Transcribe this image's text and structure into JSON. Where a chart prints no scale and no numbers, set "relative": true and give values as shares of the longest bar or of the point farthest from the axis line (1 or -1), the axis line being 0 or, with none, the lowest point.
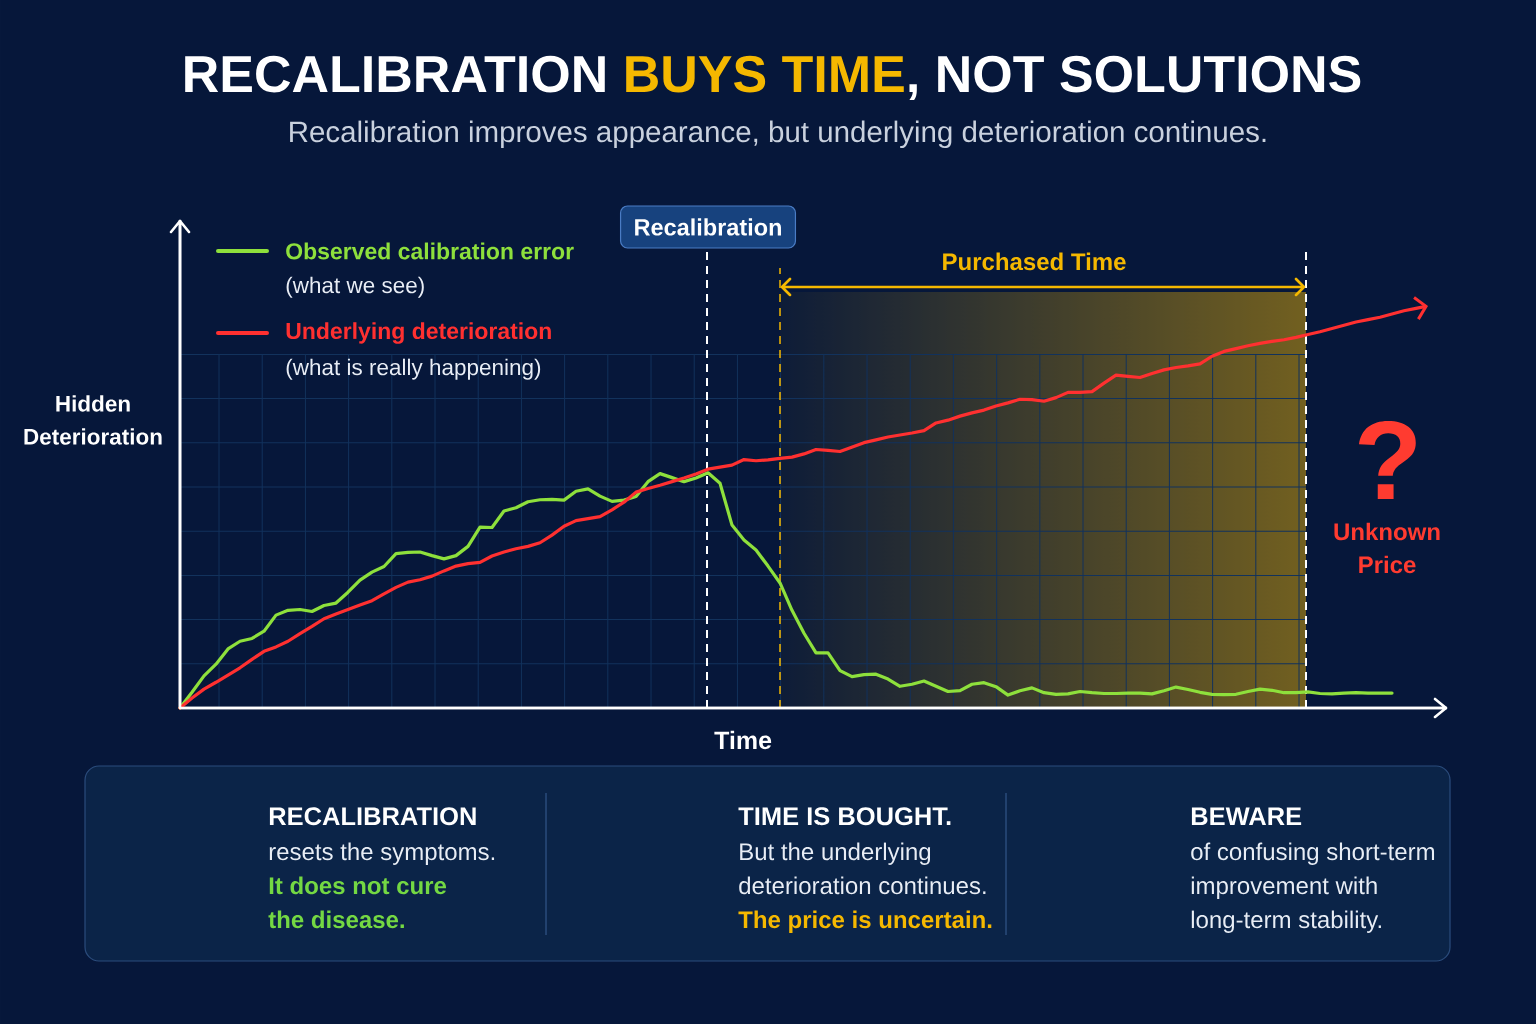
{
  "chart_data": {
    "type": "line",
    "title": "RECALIBRATION **BUYS TIME**, NOT SOLUTIONS",
    "subtitle": "Recalibration improves appearance, but underlying deterioration continues.",
    "xlabel": "Time",
    "ylabel": "Hidden Deterioration",
    "relative": true,
    "categories": [
      null,
      null,
      null,
      null,
      null,
      null,
      null,
      null,
      null,
      null,
      null,
      null,
      null,
      null,
      null,
      null,
      null,
      null,
      null,
      null,
      null,
      null,
      null,
      null,
      null,
      null,
      null,
      null,
      null,
      null,
      null,
      null,
      null,
      null,
      null,
      null,
      null,
      null,
      null,
      null,
      null,
      null,
      null,
      null,
      null,
      null,
      null,
      null,
      null,
      null,
      null,
      null,
      null,
      null,
      null,
      null,
      null,
      null,
      null,
      null,
      null,
      null,
      null,
      null,
      null,
      null,
      null,
      null,
      null,
      null,
      null,
      null,
      null,
      null,
      null,
      null,
      null,
      null,
      null,
      null,
      null,
      null,
      null,
      null,
      null,
      null,
      null,
      null,
      null,
      null,
      null,
      null,
      null,
      null,
      null,
      null,
      null,
      null,
      null,
      null,
      null,
      null,
      null,
      null,
      null
    ],
    "series": [
      {
        "name": "Observed calibration error",
        "color": "#8ee03c",
        "values": [
          0,
          0.039,
          0.08,
          0.109,
          0.147,
          0.166,
          0.173,
          0.191,
          0.231,
          0.243,
          0.245,
          0.24,
          0.255,
          0.261,
          0.288,
          0.318,
          0.338,
          0.352,
          0.384,
          0.387,
          0.388,
          0.379,
          0.371,
          0.379,
          0.402,
          0.45,
          0.449,
          0.49,
          0.498,
          0.513,
          0.518,
          0.519,
          0.517,
          0.539,
          0.545,
          0.527,
          0.514,
          0.517,
          0.526,
          0.563,
          0.583,
          0.573,
          0.563,
          0.572,
          0.585,
          0.559,
          0.455,
          0.418,
          0.393,
          0.353,
          0.311,
          0.243,
          0.186,
          0.137,
          0.137,
          0.093,
          0.078,
          0.083,
          0.084,
          0.072,
          0.054,
          0.059,
          0.067,
          0.054,
          0.041,
          0.043,
          0.059,
          0.063,
          0.053,
          0.032,
          0.043,
          0.05,
          0.038,
          0.034,
          0.035,
          0.041,
          0.038,
          0.036,
          0.036,
          0.037,
          0.037,
          0.035,
          0.043,
          0.052,
          0.046,
          0.039,
          0.034,
          0.033,
          0.034,
          0.041,
          0.047,
          0.044,
          0.038,
          0.038,
          0.04,
          0.036,
          0.035,
          0.037,
          0.038,
          0.037,
          0.037,
          0.037,
          null,
          null,
          null
        ]
      },
      {
        "name": "Underlying deterioration",
        "color": "#ff3030",
        "values": [
          0,
          0.025,
          0.047,
          0.064,
          0.082,
          0.1,
          0.121,
          0.141,
          0.152,
          0.166,
          0.185,
          0.203,
          0.222,
          0.234,
          0.245,
          0.256,
          0.267,
          0.284,
          0.3,
          0.313,
          0.319,
          0.328,
          0.341,
          0.353,
          0.359,
          0.362,
          0.378,
          0.388,
          0.396,
          0.402,
          0.411,
          0.43,
          0.452,
          0.466,
          0.471,
          0.476,
          0.493,
          0.512,
          0.537,
          0.546,
          0.554,
          0.563,
          0.572,
          0.582,
          0.594,
          0.599,
          0.604,
          0.618,
          0.615,
          0.617,
          0.621,
          0.624,
          0.632,
          0.643,
          0.641,
          0.638,
          0.649,
          0.66,
          0.667,
          0.674,
          0.679,
          0.684,
          0.69,
          0.709,
          0.716,
          0.726,
          0.734,
          0.741,
          0.751,
          0.759,
          0.768,
          0.767,
          0.763,
          0.772,
          0.785,
          0.785,
          0.787,
          0.808,
          0.828,
          0.825,
          0.822,
          0.832,
          0.841,
          0.847,
          0.851,
          0.856,
          0.875,
          0.887,
          0.894,
          0.901,
          0.907,
          0.912,
          0.916,
          0.922,
          0.929,
          0.936,
          0.944,
          0.952,
          0.96,
          0.966,
          0.972,
          0.98,
          0.988,
          0.994,
          1.0
        ]
      }
    ],
    "legend": "top left",
    "grid": true,
    "annotations": [
      "(what we see)",
      "(what is really happening)",
      "Recalibration",
      "Purchased Time",
      "?",
      "Unknown Price",
      "RECALIBRATION",
      "resets the symptoms.",
      "It does not cure the disease.",
      "TIME IS BOUGHT.",
      "But the underlying deterioration continues.",
      "The price is uncertain.",
      "BEWARE",
      "of confusing short-term improvement with long-term stability."
    ]
  }
}
